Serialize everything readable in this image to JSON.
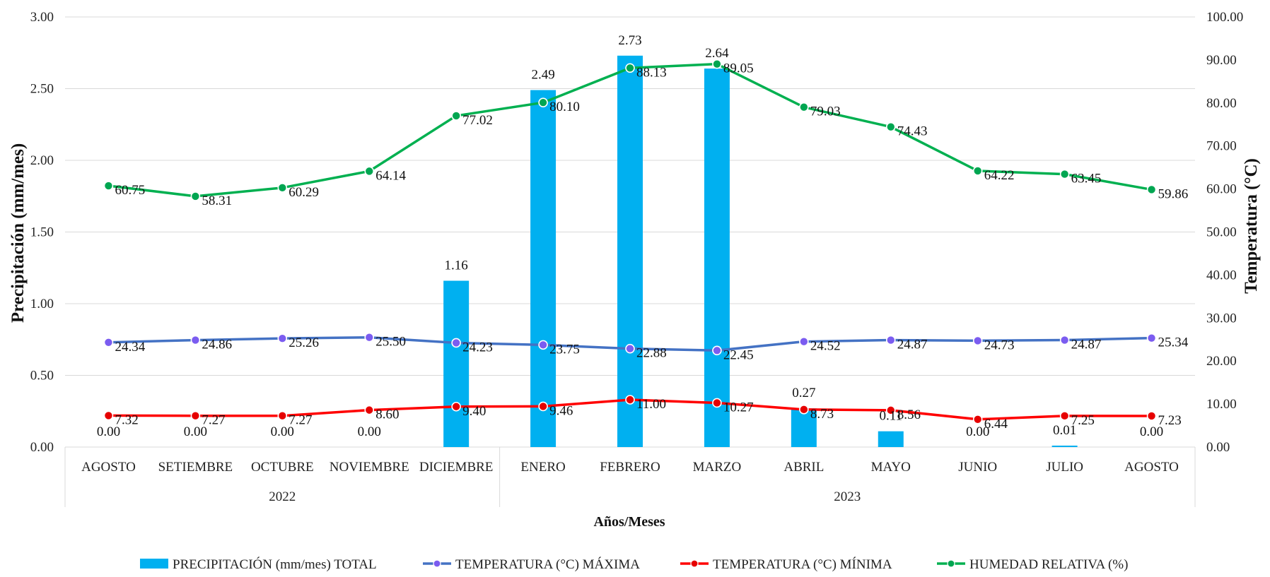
{
  "chart_data": {
    "type": "bar+line",
    "categories": [
      "AGOSTO",
      "SETIEMBRE",
      "OCTUBRE",
      "NOVIEMBRE",
      "DICIEMBRE",
      "ENERO",
      "FEBRERO",
      "MARZO",
      "ABRIL",
      "MAYO",
      "JUNIO",
      "JULIO",
      "AGOSTO"
    ],
    "groups": [
      {
        "label": "2022",
        "start": 0,
        "end": 4
      },
      {
        "label": "2023",
        "start": 5,
        "end": 12
      }
    ],
    "xlabel": "Años/Meses",
    "ylabel_left": "Precipitación (mm/mes)",
    "ylabel_right": "Temperatura (°C)",
    "ylim_left": [
      0,
      3
    ],
    "ylim_right": [
      0,
      100
    ],
    "yticks_left": [
      "0.00",
      "0.50",
      "1.00",
      "1.50",
      "2.00",
      "2.50",
      "3.00"
    ],
    "yticks_right": [
      "0.00",
      "10.00",
      "20.00",
      "30.00",
      "40.00",
      "50.00",
      "60.00",
      "70.00",
      "80.00",
      "90.00",
      "100.00"
    ],
    "grid": true,
    "legend_position": "bottom",
    "series": [
      {
        "name": "PRECIPITACIÓN (mm/mes)  TOTAL",
        "type": "bar",
        "axis": "left",
        "color": "#00b0f0",
        "values": [
          0.0,
          0.0,
          0.0,
          0.0,
          1.16,
          2.49,
          2.73,
          2.64,
          0.27,
          0.11,
          0.0,
          0.01,
          0.0
        ],
        "labels": [
          "0.00",
          "0.00",
          "0.00",
          "0.00",
          "1.16",
          "2.49",
          "2.73",
          "2.64",
          "0.27",
          "0.11",
          "0.00",
          "0.01",
          "0.00"
        ]
      },
      {
        "name": "TEMPERATURA (°C)  MÁXIMA",
        "type": "line",
        "axis": "right",
        "color": "#4472c4",
        "marker": "#7b5cf0",
        "values": [
          24.34,
          24.86,
          25.26,
          25.5,
          24.23,
          23.75,
          22.88,
          22.45,
          24.52,
          24.87,
          24.73,
          24.87,
          25.34
        ],
        "labels": [
          "24.34",
          "24.86",
          "25.26",
          "25.50",
          "24.23",
          "23.75",
          "22.88",
          "22.45",
          "24.52",
          "24.87",
          "24.73",
          "24.87",
          "25.34"
        ]
      },
      {
        "name": "TEMPERATURA (°C)  MÍNIMA",
        "type": "line",
        "axis": "right",
        "color": "#ff0000",
        "marker": "#e60000",
        "values": [
          7.32,
          7.27,
          7.27,
          8.6,
          9.4,
          9.46,
          11.0,
          10.27,
          8.73,
          8.56,
          6.44,
          7.25,
          7.23
        ],
        "labels": [
          "7.32",
          "7.27",
          "7.27",
          "8.60",
          "9.40",
          "9.46",
          "11.00",
          "10.27",
          "8.73",
          "8.56",
          "6.44",
          "7.25",
          "7.23"
        ]
      },
      {
        "name": "HUMEDAD RELATIVA (%)",
        "type": "line",
        "axis": "right",
        "color": "#00b050",
        "marker": "#00a651",
        "values": [
          60.75,
          58.31,
          60.29,
          64.14,
          77.02,
          80.1,
          88.13,
          89.05,
          79.03,
          74.43,
          64.22,
          63.45,
          59.86
        ],
        "labels": [
          "60.75",
          "58.31",
          "60.29",
          "64.14",
          "77.02",
          "80.10",
          "88.13",
          "89.05",
          "79.03",
          "74.43",
          "64.22",
          "63.45",
          "59.86"
        ]
      }
    ]
  }
}
